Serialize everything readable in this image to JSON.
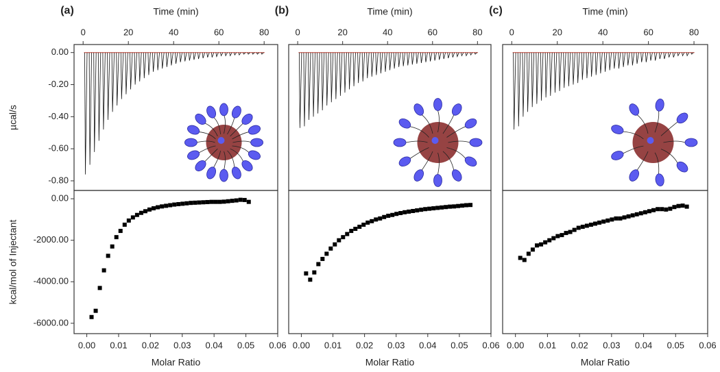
{
  "chart_data": [
    {
      "type": "spike",
      "label": "(a)",
      "x_label": "Time (min)",
      "y_label": "µcal/s",
      "color": "#111111",
      "baseline_color": "#c0392b",
      "xlim": [
        -4,
        86
      ],
      "xticks": [
        0,
        20,
        40,
        60,
        80
      ],
      "ylim": [
        -0.86,
        0.05
      ],
      "yticks": [
        {
          "value": 0,
          "label": "0.00"
        },
        {
          "value": -0.2,
          "label": "-0.20"
        },
        {
          "value": -0.4,
          "label": "-0.40"
        },
        {
          "value": -0.6,
          "label": "-0.60"
        },
        {
          "value": -0.8,
          "label": "-0.80"
        }
      ],
      "x": [
        1,
        3,
        5,
        7,
        9,
        11,
        13,
        15,
        17,
        19,
        21,
        23,
        25,
        27,
        29,
        31,
        33,
        35,
        37,
        39,
        41,
        43,
        45,
        47,
        49,
        51,
        53,
        55,
        57,
        59,
        61,
        63,
        65,
        67,
        69,
        71,
        73,
        75,
        77,
        79
      ],
      "values": [
        -0.76,
        -0.7,
        -0.62,
        -0.55,
        -0.48,
        -0.42,
        -0.37,
        -0.33,
        -0.29,
        -0.26,
        -0.23,
        -0.2,
        -0.18,
        -0.16,
        -0.14,
        -0.12,
        -0.11,
        -0.1,
        -0.09,
        -0.08,
        -0.07,
        -0.06,
        -0.055,
        -0.05,
        -0.045,
        -0.04,
        -0.035,
        -0.03,
        -0.03,
        -0.025,
        -0.02,
        -0.02,
        -0.02,
        -0.015,
        -0.015,
        -0.01,
        -0.01,
        -0.01,
        -0.01,
        -0.01
      ]
    },
    {
      "type": "scatter",
      "x_label": "Molar Ratio",
      "y_label": "kcal/mol of Injectant",
      "color": "#000000",
      "xlim": [
        -0.004,
        0.06
      ],
      "xticks": [
        {
          "value": 0,
          "label": "0.00"
        },
        0.01,
        0.02,
        0.03,
        0.04,
        0.05,
        0.06
      ],
      "ylim": [
        -6500,
        400
      ],
      "yticks": [
        {
          "value": 0,
          "label": "0.00"
        },
        {
          "value": -2000,
          "label": "-2000.00"
        },
        {
          "value": -4000,
          "label": "-4000.00"
        },
        {
          "value": -6000,
          "label": "-6000.00"
        }
      ],
      "x": [
        0.0015,
        0.0028,
        0.0041,
        0.0054,
        0.0067,
        0.008,
        0.0093,
        0.0106,
        0.0119,
        0.0132,
        0.0145,
        0.0158,
        0.0171,
        0.0184,
        0.0197,
        0.021,
        0.0223,
        0.0236,
        0.0249,
        0.0262,
        0.0275,
        0.0288,
        0.0301,
        0.0314,
        0.0327,
        0.034,
        0.0353,
        0.0366,
        0.0379,
        0.0392,
        0.0405,
        0.0418,
        0.0431,
        0.0444,
        0.0457,
        0.047,
        0.0483,
        0.0496,
        0.0509
      ],
      "values": [
        -5700,
        -5400,
        -4300,
        -3450,
        -2750,
        -2300,
        -1850,
        -1550,
        -1250,
        -1050,
        -900,
        -780,
        -680,
        -600,
        -520,
        -460,
        -410,
        -370,
        -340,
        -310,
        -280,
        -260,
        -240,
        -220,
        -200,
        -190,
        -180,
        -170,
        -160,
        -150,
        -150,
        -150,
        -140,
        -120,
        -100,
        -80,
        -50,
        -60,
        -150
      ]
    },
    {
      "type": "spike",
      "label": "(b)",
      "x_label": "Time (min)",
      "color": "#111111",
      "baseline_color": "#c0392b",
      "xlim": [
        -4,
        86
      ],
      "xticks": [
        0,
        20,
        40,
        60,
        80
      ],
      "ylim": [
        -0.86,
        0.05
      ],
      "x": [
        1,
        3,
        5,
        7,
        9,
        11,
        13,
        15,
        17,
        19,
        21,
        23,
        25,
        27,
        29,
        31,
        33,
        35,
        37,
        39,
        41,
        43,
        45,
        47,
        49,
        51,
        53,
        55,
        57,
        59,
        61,
        63,
        65,
        67,
        69,
        71,
        73,
        75,
        77,
        79
      ],
      "values": [
        -0.47,
        -0.46,
        -0.42,
        -0.4,
        -0.38,
        -0.36,
        -0.33,
        -0.31,
        -0.29,
        -0.27,
        -0.25,
        -0.23,
        -0.21,
        -0.19,
        -0.18,
        -0.16,
        -0.15,
        -0.14,
        -0.13,
        -0.12,
        -0.11,
        -0.1,
        -0.09,
        -0.085,
        -0.08,
        -0.075,
        -0.07,
        -0.065,
        -0.06,
        -0.055,
        -0.05,
        -0.045,
        -0.04,
        -0.035,
        -0.03,
        -0.025,
        -0.02,
        -0.02,
        -0.015,
        -0.01
      ]
    },
    {
      "type": "scatter",
      "x_label": "Molar Ratio",
      "color": "#000000",
      "xlim": [
        -0.004,
        0.06
      ],
      "xticks": [
        {
          "value": 0,
          "label": "0.00"
        },
        0.01,
        0.02,
        0.03,
        0.04,
        0.05,
        0.06
      ],
      "ylim": [
        -6500,
        400
      ],
      "x": [
        0.0015,
        0.0028,
        0.0041,
        0.0054,
        0.0067,
        0.008,
        0.0093,
        0.0106,
        0.0119,
        0.0132,
        0.0145,
        0.0158,
        0.0171,
        0.0184,
        0.0197,
        0.021,
        0.0223,
        0.0236,
        0.0249,
        0.0262,
        0.0275,
        0.0288,
        0.0301,
        0.0314,
        0.0327,
        0.034,
        0.0353,
        0.0366,
        0.0379,
        0.0392,
        0.0405,
        0.0418,
        0.0431,
        0.0444,
        0.0457,
        0.047,
        0.0483,
        0.0496,
        0.0509,
        0.0522,
        0.0535
      ],
      "values": [
        -3600,
        -3900,
        -3550,
        -3150,
        -2900,
        -2650,
        -2400,
        -2200,
        -2000,
        -1850,
        -1700,
        -1550,
        -1450,
        -1350,
        -1250,
        -1150,
        -1080,
        -1000,
        -950,
        -880,
        -820,
        -780,
        -730,
        -690,
        -650,
        -620,
        -590,
        -560,
        -530,
        -500,
        -480,
        -460,
        -440,
        -420,
        -400,
        -380,
        -370,
        -350,
        -330,
        -310,
        -300
      ]
    },
    {
      "type": "spike",
      "label": "(c)",
      "x_label": "Time (min)",
      "color": "#111111",
      "baseline_color": "#c0392b",
      "xlim": [
        -4,
        86
      ],
      "xticks": [
        0,
        20,
        40,
        60,
        80
      ],
      "ylim": [
        -0.86,
        0.05
      ],
      "x": [
        1,
        3,
        5,
        7,
        9,
        11,
        13,
        15,
        17,
        19,
        21,
        23,
        25,
        27,
        29,
        31,
        33,
        35,
        37,
        39,
        41,
        43,
        45,
        47,
        49,
        51,
        53,
        55,
        57,
        59,
        61,
        63,
        65,
        67,
        69,
        71,
        73,
        75,
        77,
        79
      ],
      "values": [
        -0.48,
        -0.46,
        -0.4,
        -0.37,
        -0.34,
        -0.32,
        -0.3,
        -0.28,
        -0.27,
        -0.25,
        -0.24,
        -0.22,
        -0.21,
        -0.2,
        -0.19,
        -0.17,
        -0.16,
        -0.15,
        -0.14,
        -0.13,
        -0.12,
        -0.11,
        -0.1,
        -0.1,
        -0.09,
        -0.08,
        -0.08,
        -0.07,
        -0.06,
        -0.06,
        -0.05,
        -0.05,
        -0.04,
        -0.04,
        -0.03,
        -0.03,
        -0.02,
        -0.02,
        -0.02,
        -0.01
      ]
    },
    {
      "type": "scatter",
      "x_label": "Molar Ratio",
      "color": "#000000",
      "xlim": [
        -0.004,
        0.06
      ],
      "xticks": [
        {
          "value": 0,
          "label": "0.00"
        },
        0.01,
        0.02,
        0.03,
        0.04,
        0.05,
        0.06
      ],
      "ylim": [
        -6500,
        400
      ],
      "x": [
        0.0015,
        0.0028,
        0.0041,
        0.0054,
        0.0067,
        0.008,
        0.0093,
        0.0106,
        0.0119,
        0.0132,
        0.0145,
        0.0158,
        0.0171,
        0.0184,
        0.0197,
        0.021,
        0.0223,
        0.0236,
        0.0249,
        0.0262,
        0.0275,
        0.0288,
        0.0301,
        0.0314,
        0.0327,
        0.034,
        0.0353,
        0.0366,
        0.0379,
        0.0392,
        0.0405,
        0.0418,
        0.0431,
        0.0444,
        0.0457,
        0.047,
        0.0483,
        0.0496,
        0.0509,
        0.0522,
        0.0535
      ],
      "values": [
        -2850,
        -2950,
        -2650,
        -2450,
        -2250,
        -2200,
        -2100,
        -2000,
        -1900,
        -1800,
        -1750,
        -1650,
        -1600,
        -1500,
        -1400,
        -1350,
        -1300,
        -1250,
        -1200,
        -1150,
        -1100,
        -1050,
        -1000,
        -950,
        -950,
        -900,
        -850,
        -800,
        -750,
        -700,
        -650,
        -600,
        -550,
        -500,
        -500,
        -520,
        -480,
        -400,
        -350,
        -330,
        -380
      ]
    }
  ]
}
